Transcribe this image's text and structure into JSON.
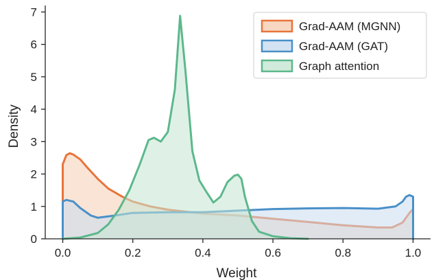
{
  "chart_data": {
    "type": "area",
    "title": "",
    "xlabel": "Weight",
    "ylabel": "Density",
    "xlim": [
      -0.05,
      1.05
    ],
    "ylim": [
      0,
      7.2
    ],
    "x_ticks": [
      "0.0",
      "0.2",
      "0.4",
      "0.6",
      "0.8",
      "1.0"
    ],
    "y_ticks": [
      "0",
      "1",
      "2",
      "3",
      "4",
      "5",
      "6",
      "7"
    ],
    "x_tick_values": [
      0.0,
      0.2,
      0.4,
      0.6,
      0.8,
      1.0
    ],
    "y_tick_values": [
      0,
      1,
      2,
      3,
      4,
      5,
      6,
      7
    ],
    "grid": false,
    "legend_position": "top-right",
    "series": [
      {
        "name": "Grad-AAM (MGNN)",
        "color": "#e8743b",
        "fill": "#f6cdb3",
        "x": [
          0.0,
          0.0,
          0.01,
          0.02,
          0.03,
          0.05,
          0.07,
          0.1,
          0.13,
          0.17,
          0.2,
          0.25,
          0.3,
          0.4,
          0.5,
          0.6,
          0.7,
          0.8,
          0.9,
          0.94,
          0.97,
          0.99,
          1.0,
          1.0
        ],
        "y": [
          0,
          2.3,
          2.58,
          2.64,
          2.6,
          2.45,
          2.2,
          1.85,
          1.55,
          1.3,
          1.15,
          1.0,
          0.9,
          0.78,
          0.72,
          0.62,
          0.52,
          0.42,
          0.35,
          0.35,
          0.5,
          0.8,
          0.92,
          0
        ]
      },
      {
        "name": "Grad-AAM (GAT)",
        "color": "#4a90c8",
        "fill": "#c8dcf0",
        "x": [
          0.0,
          0.0,
          0.01,
          0.03,
          0.05,
          0.08,
          0.1,
          0.15,
          0.2,
          0.3,
          0.4,
          0.5,
          0.6,
          0.7,
          0.8,
          0.9,
          0.95,
          0.97,
          0.98,
          0.99,
          1.0,
          1.0
        ],
        "y": [
          0,
          1.15,
          1.2,
          1.15,
          0.95,
          0.72,
          0.65,
          0.72,
          0.8,
          0.82,
          0.82,
          0.87,
          0.92,
          0.94,
          0.95,
          0.93,
          1.0,
          1.15,
          1.3,
          1.35,
          1.3,
          0
        ]
      },
      {
        "name": "Graph attention",
        "color": "#5cb88c",
        "fill": "#c4e6d3",
        "x": [
          0.0,
          0.05,
          0.1,
          0.13,
          0.16,
          0.19,
          0.22,
          0.245,
          0.26,
          0.28,
          0.3,
          0.32,
          0.335,
          0.35,
          0.37,
          0.39,
          0.41,
          0.43,
          0.45,
          0.47,
          0.49,
          0.5,
          0.51,
          0.52,
          0.54,
          0.56,
          0.6,
          0.65,
          0.7
        ],
        "y": [
          0,
          0.04,
          0.18,
          0.45,
          0.9,
          1.5,
          2.3,
          3.05,
          3.12,
          3.0,
          3.3,
          4.6,
          6.88,
          5.2,
          2.7,
          1.8,
          1.45,
          1.12,
          1.3,
          1.75,
          1.95,
          1.98,
          1.85,
          1.3,
          0.55,
          0.22,
          0.08,
          0.02,
          0
        ]
      }
    ]
  }
}
